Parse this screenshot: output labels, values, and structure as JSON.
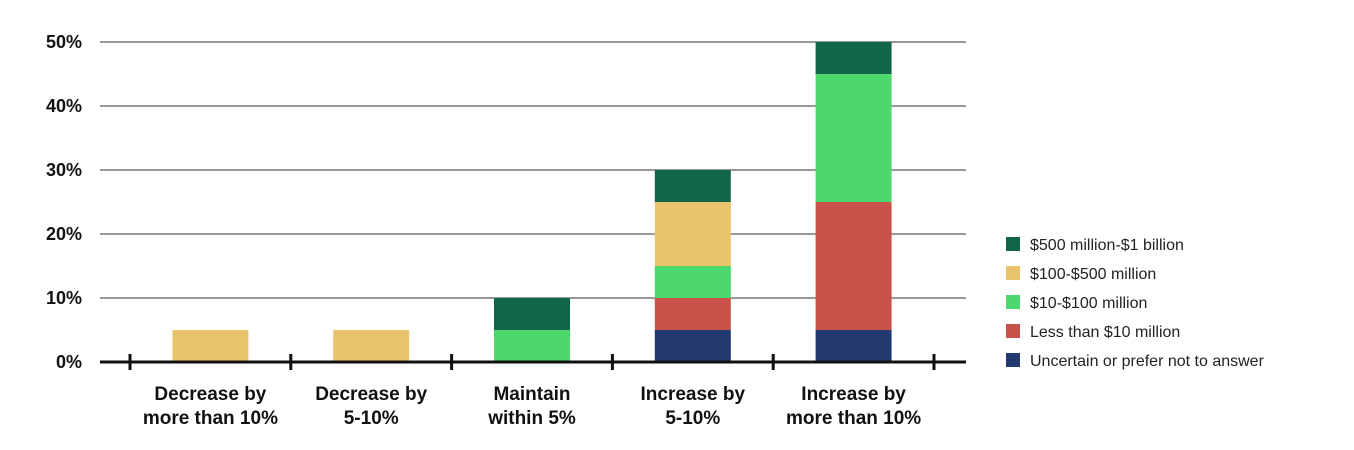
{
  "chart_data": {
    "type": "bar",
    "stacked": true,
    "title": "",
    "xlabel": "",
    "ylabel": "",
    "ylim": [
      0,
      50
    ],
    "yticks": [
      0,
      10,
      20,
      30,
      40,
      50
    ],
    "ytick_labels": [
      "0%",
      "10%",
      "20%",
      "30%",
      "40%",
      "50%"
    ],
    "grid": true,
    "legend_position": "right",
    "categories": [
      [
        "Decrease by",
        "more than 10%"
      ],
      [
        "Decrease by",
        "5-10%"
      ],
      [
        "Maintain",
        "within 5%"
      ],
      [
        "Increase by",
        "5-10%"
      ],
      [
        "Increase by",
        "more than 10%"
      ]
    ],
    "series": [
      {
        "name": "Uncertain or prefer not to answer",
        "color": "#223a70",
        "values": [
          0,
          0,
          0,
          5,
          5
        ]
      },
      {
        "name": "Less than $10 million",
        "color": "#c9534a",
        "values": [
          0,
          0,
          0,
          5,
          20
        ]
      },
      {
        "name": "$10-$100 million",
        "color": "#4cd86e",
        "values": [
          0,
          0,
          5,
          5,
          20
        ]
      },
      {
        "name": "$100-$500 million",
        "color": "#eac46b",
        "values": [
          5,
          5,
          0,
          10,
          0
        ]
      },
      {
        "name": "$500 million-$1 billion",
        "color": "#12644a",
        "values": [
          0,
          0,
          5,
          5,
          5
        ]
      }
    ]
  }
}
